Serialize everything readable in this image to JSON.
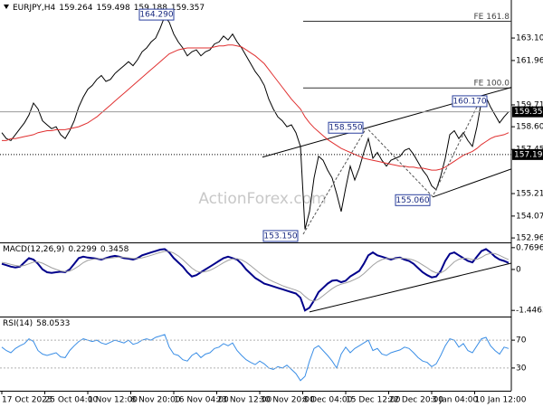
{
  "chart_data": [
    {
      "type": "line",
      "title": "EURJPY,H4",
      "ohlc": [
        159.264,
        159.498,
        159.188
      ],
      "watermark": "ActionForex.com",
      "xlim": [
        0,
        113
      ],
      "xticks": [
        {
          "value": 0,
          "label": "17 Oct 2023"
        },
        {
          "value": 9.5,
          "label": "25 Oct 04:00"
        },
        {
          "value": 19,
          "label": "1 Nov 12:00"
        },
        {
          "value": 28.5,
          "label": "8 Nov 20:00"
        },
        {
          "value": 38,
          "label": "16 Nov 04:00"
        },
        {
          "value": 47.5,
          "label": "23 Nov 12:00"
        },
        {
          "value": 57,
          "label": "30 Nov 20:00"
        },
        {
          "value": 66.5,
          "label": "8 Dec 04:00"
        },
        {
          "value": 76,
          "label": "15 Dec 12:00"
        },
        {
          "value": 85.5,
          "label": "22 Dec 20:00"
        },
        {
          "value": 95,
          "label": "3 Jan 04:00"
        },
        {
          "value": 104.5,
          "label": "10 Jan 12:00"
        }
      ],
      "ylim": [
        152.78,
        164.8
      ],
      "yticks": [
        {
          "value": 163.1,
          "label": "163.100"
        },
        {
          "value": 161.96,
          "label": "161.960"
        },
        {
          "value": 159.71,
          "label": "159.710"
        },
        {
          "value": 158.6,
          "label": "158.600"
        },
        {
          "value": 157.45,
          "label": "157.450"
        },
        {
          "value": 155.21,
          "label": "155.210"
        },
        {
          "value": 154.07,
          "label": "154.070"
        },
        {
          "value": 152.96,
          "label": "152.960"
        }
      ],
      "series": [
        {
          "color": "#000000",
          "values": [
            158.3,
            158.0,
            157.9,
            158.2,
            158.5,
            158.8,
            159.2,
            159.8,
            159.5,
            158.9,
            158.7,
            158.5,
            158.6,
            158.2,
            158.0,
            158.4,
            158.9,
            159.6,
            160.1,
            160.5,
            160.7,
            161.0,
            161.2,
            160.9,
            161.0,
            161.3,
            161.5,
            161.7,
            161.9,
            161.7,
            162.0,
            162.4,
            162.6,
            162.9,
            163.1,
            163.6,
            164.2,
            163.9,
            163.3,
            162.9,
            162.6,
            162.2,
            162.4,
            162.5,
            162.2,
            162.4,
            162.5,
            162.8,
            162.9,
            163.2,
            163.0,
            163.3,
            162.9,
            162.6,
            162.2,
            161.8,
            161.4,
            161.1,
            160.7,
            160.0,
            159.5,
            159.1,
            158.9,
            158.6,
            158.7,
            158.3,
            157.6,
            153.4,
            154.3,
            156.0,
            157.1,
            156.9,
            156.4,
            156.0,
            155.2,
            154.3,
            155.5,
            156.6,
            155.9,
            156.5,
            157.3,
            158.0,
            157.0,
            157.3,
            156.9,
            156.6,
            156.9,
            157.0,
            157.1,
            157.4,
            157.5,
            157.2,
            156.8,
            156.4,
            156.1,
            155.6,
            155.4,
            156.1,
            157.0,
            158.2,
            158.4,
            158.0,
            158.3,
            157.9,
            157.6,
            158.6,
            159.9,
            160.1,
            159.6,
            159.2,
            158.8,
            159.1,
            159.357
          ]
        },
        {
          "color": "#e03030",
          "values": [
            157.9,
            157.9,
            158.0,
            158.0,
            158.05,
            158.1,
            158.15,
            158.2,
            158.3,
            158.35,
            158.4,
            158.4,
            158.45,
            158.45,
            158.45,
            158.5,
            158.55,
            158.6,
            158.7,
            158.8,
            158.95,
            159.1,
            159.3,
            159.5,
            159.7,
            159.9,
            160.1,
            160.3,
            160.5,
            160.7,
            160.9,
            161.1,
            161.3,
            161.5,
            161.7,
            161.9,
            162.1,
            162.3,
            162.4,
            162.5,
            162.55,
            162.6,
            162.6,
            162.6,
            162.6,
            162.6,
            162.6,
            162.65,
            162.7,
            162.7,
            162.75,
            162.75,
            162.7,
            162.65,
            162.5,
            162.35,
            162.2,
            162.0,
            161.8,
            161.5,
            161.2,
            160.9,
            160.6,
            160.3,
            160.0,
            159.75,
            159.5,
            159.1,
            158.8,
            158.55,
            158.35,
            158.15,
            157.95,
            157.8,
            157.65,
            157.5,
            157.4,
            157.3,
            157.2,
            157.1,
            157.0,
            156.95,
            156.9,
            156.85,
            156.8,
            156.75,
            156.7,
            156.65,
            156.6,
            156.6,
            156.55,
            156.55,
            156.5,
            156.5,
            156.45,
            156.4,
            156.4,
            156.45,
            156.55,
            156.7,
            156.85,
            157.0,
            157.15,
            157.25,
            157.35,
            157.5,
            157.7,
            157.85,
            158.0,
            158.1,
            158.15,
            158.2,
            158.3
          ]
        }
      ],
      "levels": [
        {
          "label": "FE 161.8",
          "value": 163.95,
          "x": [
            66.6,
            113
          ]
        },
        {
          "label": "FE 100.0",
          "value": 160.57,
          "x": [
            66.6,
            113
          ]
        }
      ],
      "price_lines": [
        {
          "value": 157.19,
          "label": "157.190"
        }
      ],
      "trendlines": [
        {
          "x": [
            57.6,
            112.6
          ],
          "values": [
            157.06,
            160.6
          ]
        },
        {
          "x": [
            95.2,
            112.6
          ],
          "values": [
            155.03,
            156.46
          ]
        }
      ],
      "annotations": [
        {
          "x": 36.4,
          "value": 164.29,
          "label": "164.290"
        },
        {
          "x": 66.6,
          "value": 153.15,
          "label": "153.150"
        },
        {
          "x": 80.6,
          "value": 158.55,
          "label": "158.550"
        },
        {
          "x": 95.2,
          "value": 155.06,
          "label": "155.060"
        },
        {
          "x": 106.2,
          "value": 160.17,
          "label": "160.170"
        }
      ]
    },
    {
      "type": "line",
      "title": "MACD(12,26,9)",
      "xlim": [
        0,
        113
      ],
      "ylim": [
        -1.6,
        0.86
      ],
      "yticks": [
        0.7696,
        0,
        -1.4463
      ],
      "series": [
        {
          "color": "#00008b",
          "values": [
            0.2,
            0.15,
            0.1,
            0.07,
            0.1,
            0.25,
            0.4,
            0.35,
            0.2,
            0.0,
            -0.1,
            -0.12,
            -0.1,
            -0.08,
            -0.1,
            0.0,
            0.2,
            0.4,
            0.45,
            0.42,
            0.4,
            0.38,
            0.35,
            0.4,
            0.45,
            0.48,
            0.45,
            0.4,
            0.38,
            0.35,
            0.4,
            0.5,
            0.55,
            0.6,
            0.65,
            0.7,
            0.72,
            0.6,
            0.4,
            0.25,
            0.1,
            -0.1,
            -0.25,
            -0.2,
            -0.1,
            0.0,
            0.1,
            0.2,
            0.3,
            0.4,
            0.45,
            0.4,
            0.35,
            0.2,
            0.0,
            -0.15,
            -0.3,
            -0.4,
            -0.5,
            -0.55,
            -0.6,
            -0.65,
            -0.7,
            -0.75,
            -0.8,
            -0.85,
            -1.0,
            -1.45,
            -1.35,
            -1.1,
            -0.8,
            -0.65,
            -0.5,
            -0.4,
            -0.38,
            -0.45,
            -0.4,
            -0.25,
            -0.15,
            -0.05,
            0.2,
            0.5,
            0.6,
            0.5,
            0.45,
            0.4,
            0.35,
            0.4,
            0.42,
            0.35,
            0.3,
            0.2,
            0.05,
            -0.1,
            -0.2,
            -0.28,
            -0.25,
            -0.05,
            0.3,
            0.55,
            0.6,
            0.5,
            0.4,
            0.3,
            0.25,
            0.45,
            0.65,
            0.72,
            0.6,
            0.45,
            0.35,
            0.3,
            0.2299
          ]
        },
        {
          "color": "#a0a0a0",
          "values": [
            0.25,
            0.22,
            0.18,
            0.14,
            0.12,
            0.14,
            0.2,
            0.26,
            0.27,
            0.22,
            0.14,
            0.06,
            0.0,
            -0.05,
            -0.08,
            -0.06,
            0.02,
            0.12,
            0.24,
            0.32,
            0.36,
            0.38,
            0.38,
            0.38,
            0.4,
            0.42,
            0.44,
            0.43,
            0.41,
            0.39,
            0.39,
            0.41,
            0.45,
            0.5,
            0.55,
            0.6,
            0.64,
            0.64,
            0.58,
            0.48,
            0.35,
            0.2,
            0.05,
            -0.06,
            -0.1,
            -0.08,
            -0.03,
            0.05,
            0.14,
            0.24,
            0.32,
            0.37,
            0.38,
            0.34,
            0.25,
            0.13,
            0.0,
            -0.13,
            -0.25,
            -0.35,
            -0.43,
            -0.5,
            -0.57,
            -0.63,
            -0.68,
            -0.73,
            -0.8,
            -0.95,
            -1.08,
            -1.12,
            -1.05,
            -0.93,
            -0.8,
            -0.68,
            -0.58,
            -0.52,
            -0.48,
            -0.42,
            -0.35,
            -0.27,
            -0.15,
            0.0,
            0.15,
            0.27,
            0.35,
            0.39,
            0.39,
            0.39,
            0.4,
            0.39,
            0.37,
            0.33,
            0.26,
            0.16,
            0.06,
            -0.05,
            -0.12,
            -0.12,
            -0.03,
            0.12,
            0.27,
            0.36,
            0.4,
            0.39,
            0.35,
            0.36,
            0.43,
            0.52,
            0.57,
            0.56,
            0.5,
            0.42,
            0.3458
          ]
        }
      ],
      "trendlines": [
        {
          "x": [
            68,
            112.6
          ],
          "values": [
            -1.5,
            0.22
          ]
        }
      ]
    },
    {
      "type": "line",
      "title": "RSI(14)",
      "xlim": [
        0,
        113
      ],
      "ylim": [
        0,
        100
      ],
      "yticks": [
        70,
        30
      ],
      "grid": true,
      "series": [
        {
          "color": "#3a8ee6",
          "values": [
            60,
            55,
            52,
            58,
            62,
            65,
            72,
            68,
            55,
            50,
            48,
            50,
            52,
            46,
            45,
            55,
            62,
            68,
            72,
            70,
            68,
            70,
            66,
            64,
            67,
            70,
            68,
            66,
            70,
            64,
            66,
            70,
            72,
            70,
            74,
            76,
            78,
            60,
            50,
            48,
            42,
            40,
            48,
            52,
            45,
            50,
            52,
            58,
            60,
            65,
            62,
            66,
            55,
            48,
            42,
            38,
            35,
            40,
            36,
            30,
            28,
            32,
            30,
            34,
            28,
            22,
            12,
            18,
            40,
            58,
            62,
            55,
            48,
            40,
            30,
            50,
            60,
            52,
            58,
            62,
            66,
            70,
            55,
            58,
            50,
            48,
            52,
            54,
            56,
            60,
            58,
            52,
            45,
            40,
            38,
            32,
            36,
            48,
            62,
            72,
            70,
            60,
            65,
            55,
            52,
            62,
            72,
            74,
            62,
            55,
            50,
            60,
            58.0533
          ]
        }
      ]
    }
  ]
}
